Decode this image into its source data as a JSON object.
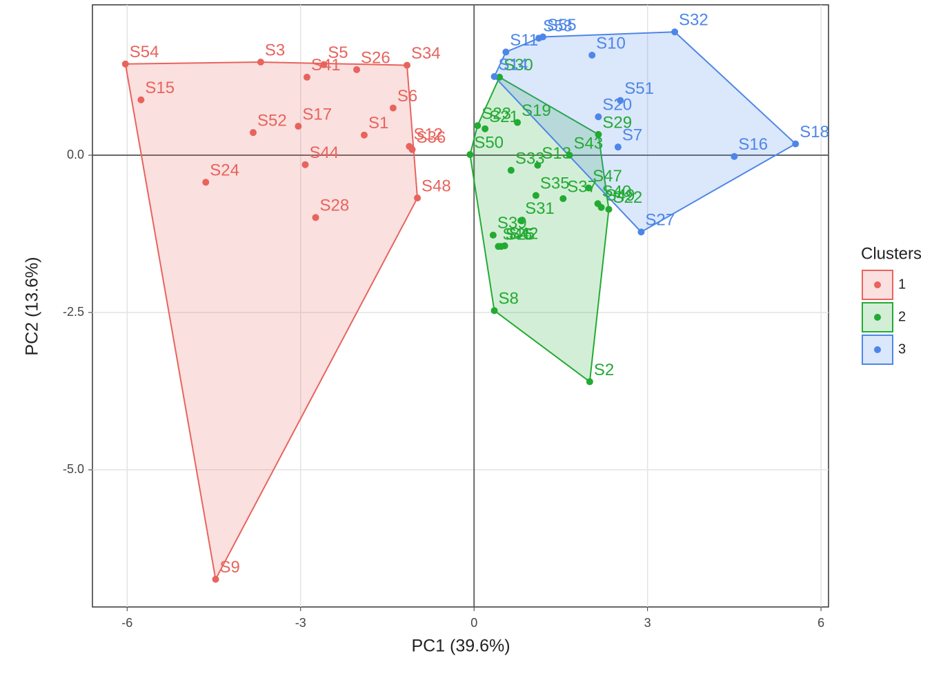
{
  "chart_data": {
    "type": "scatter",
    "xlabel": "PC1 (39.6%)",
    "ylabel": "PC2 (13.6%)",
    "xlim": [
      -6.6,
      6.13
    ],
    "ylim": [
      -7.18,
      2.39
    ],
    "xticks": [
      -6,
      -3,
      0,
      3,
      6
    ],
    "yticks": [
      {
        "value": 0,
        "label": "0.0"
      },
      {
        "value": -2.5,
        "label": "-2.5"
      },
      {
        "value": -5,
        "label": "-5.0"
      }
    ],
    "grid": true,
    "hline": 0,
    "vline": 0,
    "hulls": true,
    "legend_title": "Clusters",
    "legend": "right",
    "series": [
      {
        "name": "1",
        "color": "#e8635d",
        "labels": [
          "S54",
          "S15",
          "S3",
          "S5",
          "S26",
          "S34",
          "S41",
          "S6",
          "S17",
          "S1",
          "S52",
          "S12",
          "S36",
          "S44",
          "S24",
          "S28",
          "S48",
          "S9"
        ],
        "x": [
          -6.03,
          -5.76,
          -3.69,
          -2.6,
          -2.03,
          -1.16,
          -2.89,
          -1.4,
          -3.04,
          -1.9,
          -3.82,
          -1.12,
          -1.07,
          -2.92,
          -4.64,
          -2.74,
          -0.98,
          -4.47
        ],
        "values": [
          1.45,
          0.88,
          1.48,
          1.44,
          1.36,
          1.43,
          1.24,
          0.75,
          0.46,
          0.32,
          0.36,
          0.14,
          0.09,
          -0.15,
          -0.43,
          -0.99,
          -0.68,
          -6.74
        ]
      },
      {
        "name": "2",
        "color": "#22aa33",
        "labels": [
          "S23",
          "S21",
          "S50",
          "S30",
          "S19",
          "S29",
          "S43",
          "S13",
          "S33",
          "S35",
          "S37",
          "S47",
          "S40",
          "S49",
          "S22",
          "S31",
          "S39",
          "S42",
          "S46",
          "S25",
          "S8",
          "S2"
        ],
        "x": [
          0.06,
          0.19,
          -0.07,
          0.44,
          0.75,
          2.15,
          1.65,
          1.1,
          0.64,
          1.07,
          1.54,
          1.98,
          2.14,
          2.2,
          2.33,
          0.81,
          0.33,
          0.53,
          0.42,
          0.47,
          0.35,
          2.0
        ],
        "values": [
          0.47,
          0.42,
          0.01,
          1.24,
          0.52,
          0.33,
          0.0,
          -0.16,
          -0.24,
          -0.64,
          -0.69,
          -0.52,
          -0.77,
          -0.83,
          -0.86,
          -1.04,
          -1.27,
          -1.44,
          -1.45,
          -1.45,
          -2.47,
          -3.6
        ]
      },
      {
        "name": "3",
        "color": "#4d86e8",
        "labels": [
          "S55",
          "S53",
          "S11",
          "S32",
          "S10",
          "S14",
          "S20",
          "S51",
          "S7",
          "S16",
          "S18",
          "S27"
        ],
        "x": [
          1.19,
          1.12,
          0.55,
          3.47,
          2.04,
          0.35,
          2.15,
          2.53,
          2.49,
          4.5,
          5.56,
          2.89
        ],
        "values": [
          1.88,
          1.86,
          1.64,
          1.96,
          1.59,
          1.25,
          0.61,
          0.87,
          0.13,
          -0.02,
          0.18,
          -1.22
        ]
      }
    ]
  }
}
